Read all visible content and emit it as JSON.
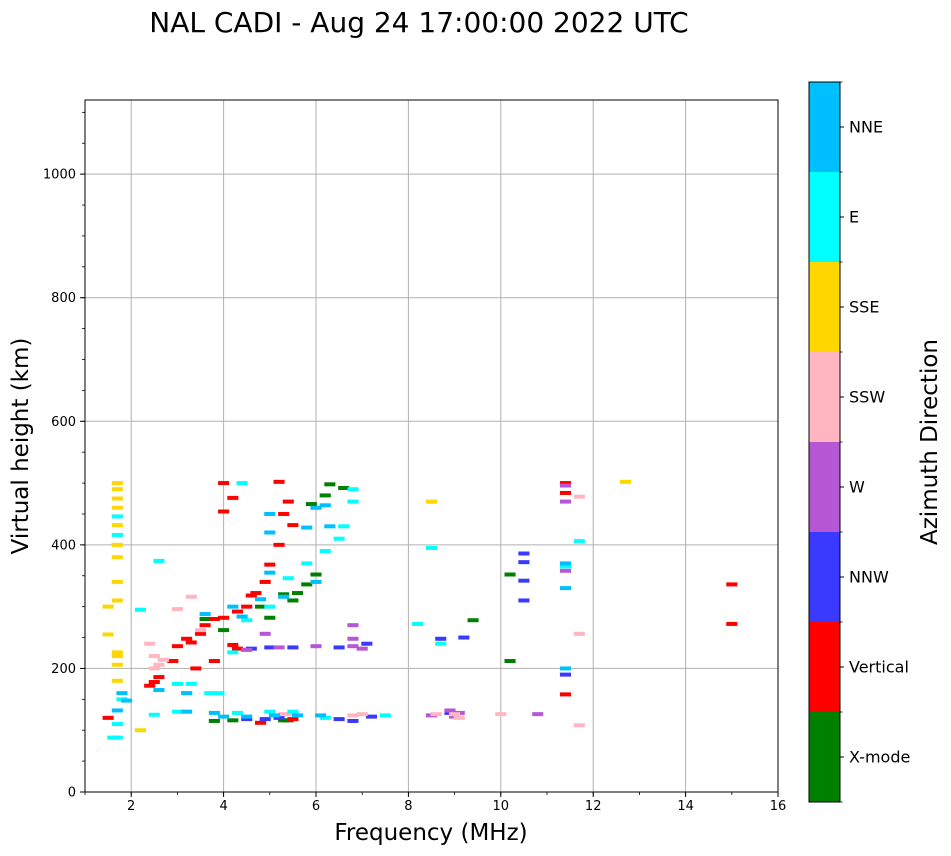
{
  "chart_data": {
    "type": "scatter",
    "title": "NAL CADI - Aug 24 17:00:00 2022 UTC",
    "xlabel": "Frequency (MHz)",
    "ylabel": "Virtual height (km)",
    "xlim": [
      1,
      16
    ],
    "ylim": [
      0,
      1120
    ],
    "xticks": [
      2,
      4,
      6,
      8,
      10,
      12,
      14,
      16
    ],
    "yticks": [
      0,
      200,
      400,
      600,
      800,
      1000
    ],
    "grid": true,
    "colorbar": {
      "label": "Azimuth Direction",
      "categories": [
        {
          "name": "X-mode",
          "color": "#008000"
        },
        {
          "name": "Vertical",
          "color": "#ff0000"
        },
        {
          "name": "NNW",
          "color": "#3a3aff"
        },
        {
          "name": "W",
          "color": "#b657d6"
        },
        {
          "name": "SSW",
          "color": "#ffb6c1"
        },
        {
          "name": "SSE",
          "color": "#ffd700"
        },
        {
          "name": "E",
          "color": "#00ffff"
        },
        {
          "name": "NNE",
          "color": "#00bfff"
        }
      ]
    },
    "series": [
      {
        "name": "X-mode",
        "points": [
          [
            3.8,
            115
          ],
          [
            4.2,
            116
          ],
          [
            5.3,
            116
          ],
          [
            5.4,
            116
          ],
          [
            5.0,
            282
          ],
          [
            5.5,
            310
          ],
          [
            5.3,
            320
          ],
          [
            5.8,
            336
          ],
          [
            6.0,
            352
          ],
          [
            4.0,
            262
          ],
          [
            3.6,
            280
          ],
          [
            5.9,
            466
          ],
          [
            6.6,
            492
          ],
          [
            6.3,
            498
          ],
          [
            9.4,
            278
          ],
          [
            10.2,
            212
          ],
          [
            10.2,
            352
          ],
          [
            6.2,
            480
          ],
          [
            4.8,
            300
          ],
          [
            5.6,
            322
          ]
        ]
      },
      {
        "name": "Vertical",
        "points": [
          [
            1.5,
            120
          ],
          [
            2.4,
            172
          ],
          [
            2.5,
            178
          ],
          [
            2.6,
            186
          ],
          [
            2.9,
            212
          ],
          [
            3.0,
            236
          ],
          [
            3.2,
            248
          ],
          [
            3.3,
            242
          ],
          [
            3.5,
            256
          ],
          [
            3.6,
            270
          ],
          [
            3.8,
            280
          ],
          [
            4.0,
            282
          ],
          [
            4.3,
            292
          ],
          [
            4.5,
            300
          ],
          [
            4.7,
            322
          ],
          [
            4.9,
            340
          ],
          [
            5.0,
            368
          ],
          [
            5.2,
            400
          ],
          [
            5.3,
            450
          ],
          [
            5.4,
            470
          ],
          [
            5.2,
            502
          ],
          [
            4.0,
            500
          ],
          [
            4.2,
            476
          ],
          [
            4.0,
            454
          ],
          [
            11.4,
            500
          ],
          [
            11.4,
            484
          ],
          [
            11.4,
            158
          ],
          [
            15.0,
            272
          ],
          [
            15.0,
            336
          ],
          [
            4.8,
            112
          ],
          [
            5.5,
            118
          ],
          [
            4.3,
            232
          ],
          [
            4.2,
            238
          ],
          [
            3.4,
            200
          ],
          [
            3.8,
            212
          ],
          [
            4.6,
            318
          ],
          [
            5.5,
            432
          ]
        ]
      },
      {
        "name": "NNW",
        "points": [
          [
            4.5,
            118
          ],
          [
            4.9,
            118
          ],
          [
            5.2,
            120
          ],
          [
            6.5,
            118
          ],
          [
            6.8,
            115
          ],
          [
            7.2,
            122
          ],
          [
            8.9,
            128
          ],
          [
            9.2,
            250
          ],
          [
            10.5,
            310
          ],
          [
            10.5,
            342
          ],
          [
            10.5,
            386
          ],
          [
            10.5,
            372
          ],
          [
            7.1,
            240
          ],
          [
            6.5,
            234
          ],
          [
            5.5,
            234
          ],
          [
            5.0,
            234
          ],
          [
            4.6,
            232
          ],
          [
            11.4,
            190
          ],
          [
            8.7,
            248
          ]
        ]
      },
      {
        "name": "W",
        "points": [
          [
            4.5,
            230
          ],
          [
            5.2,
            234
          ],
          [
            6.0,
            236
          ],
          [
            6.8,
            248
          ],
          [
            6.8,
            270
          ],
          [
            6.8,
            236
          ],
          [
            7.0,
            232
          ],
          [
            8.9,
            132
          ],
          [
            9.0,
            122
          ],
          [
            9.1,
            128
          ],
          [
            10.8,
            126
          ],
          [
            11.4,
            470
          ],
          [
            11.4,
            358
          ],
          [
            4.9,
            256
          ],
          [
            11.4,
            496
          ],
          [
            8.5,
            124
          ]
        ]
      },
      {
        "name": "SSW",
        "points": [
          [
            2.5,
            200
          ],
          [
            2.6,
            206
          ],
          [
            2.7,
            214
          ],
          [
            2.5,
            220
          ],
          [
            2.4,
            240
          ],
          [
            3.5,
            262
          ],
          [
            3.3,
            316
          ],
          [
            5.3,
            126
          ],
          [
            5.5,
            126
          ],
          [
            6.8,
            124
          ],
          [
            7.0,
            126
          ],
          [
            9.0,
            126
          ],
          [
            9.1,
            120
          ],
          [
            10.0,
            126
          ],
          [
            11.7,
            478
          ],
          [
            11.7,
            256
          ],
          [
            11.7,
            108
          ],
          [
            8.6,
            126
          ],
          [
            4.4,
            284
          ],
          [
            3.0,
            296
          ]
        ]
      },
      {
        "name": "SSE",
        "points": [
          [
            1.7,
            432
          ],
          [
            1.7,
            460
          ],
          [
            1.7,
            475
          ],
          [
            1.7,
            500
          ],
          [
            1.7,
            490
          ],
          [
            1.7,
            400
          ],
          [
            1.7,
            380
          ],
          [
            1.7,
            340
          ],
          [
            1.7,
            310
          ],
          [
            1.5,
            300
          ],
          [
            1.5,
            255
          ],
          [
            1.7,
            226
          ],
          [
            1.7,
            220
          ],
          [
            1.7,
            206
          ],
          [
            2.2,
            100
          ],
          [
            8.5,
            470
          ],
          [
            12.7,
            502
          ],
          [
            1.7,
            180
          ]
        ]
      },
      {
        "name": "E",
        "points": [
          [
            1.6,
            88
          ],
          [
            1.7,
            88
          ],
          [
            1.7,
            110
          ],
          [
            1.8,
            150
          ],
          [
            2.5,
            125
          ],
          [
            3.0,
            130
          ],
          [
            3.0,
            175
          ],
          [
            3.3,
            175
          ],
          [
            3.2,
            160
          ],
          [
            3.7,
            160
          ],
          [
            3.9,
            160
          ],
          [
            4.2,
            226
          ],
          [
            4.4,
            500
          ],
          [
            4.5,
            278
          ],
          [
            5.0,
            300
          ],
          [
            5.4,
            346
          ],
          [
            5.8,
            370
          ],
          [
            6.2,
            390
          ],
          [
            6.5,
            410
          ],
          [
            6.6,
            430
          ],
          [
            6.8,
            470
          ],
          [
            6.8,
            490
          ],
          [
            8.5,
            395
          ],
          [
            8.2,
            272
          ],
          [
            8.7,
            240
          ],
          [
            5.5,
            130
          ],
          [
            6.2,
            120
          ],
          [
            7.5,
            124
          ],
          [
            11.4,
            365
          ],
          [
            11.7,
            406
          ],
          [
            1.7,
            416
          ],
          [
            1.7,
            446
          ],
          [
            2.2,
            295
          ],
          [
            2.6,
            374
          ],
          [
            5.0,
            130
          ],
          [
            4.3,
            128
          ]
        ]
      },
      {
        "name": "NNE",
        "points": [
          [
            1.7,
            132
          ],
          [
            1.9,
            148
          ],
          [
            1.8,
            160
          ],
          [
            2.6,
            165
          ],
          [
            3.2,
            160
          ],
          [
            3.2,
            130
          ],
          [
            3.8,
            128
          ],
          [
            4.0,
            122
          ],
          [
            4.5,
            122
          ],
          [
            5.1,
            124
          ],
          [
            5.6,
            124
          ],
          [
            6.1,
            124
          ],
          [
            4.8,
            312
          ],
          [
            5.0,
            355
          ],
          [
            5.3,
            316
          ],
          [
            6.0,
            340
          ],
          [
            6.0,
            460
          ],
          [
            6.3,
            430
          ],
          [
            5.0,
            450
          ],
          [
            5.0,
            420
          ],
          [
            4.4,
            284
          ],
          [
            11.4,
            330
          ],
          [
            11.4,
            370
          ],
          [
            11.4,
            200
          ],
          [
            3.6,
            288
          ],
          [
            4.2,
            300
          ],
          [
            5.8,
            428
          ],
          [
            6.2,
            464
          ]
        ]
      }
    ]
  }
}
